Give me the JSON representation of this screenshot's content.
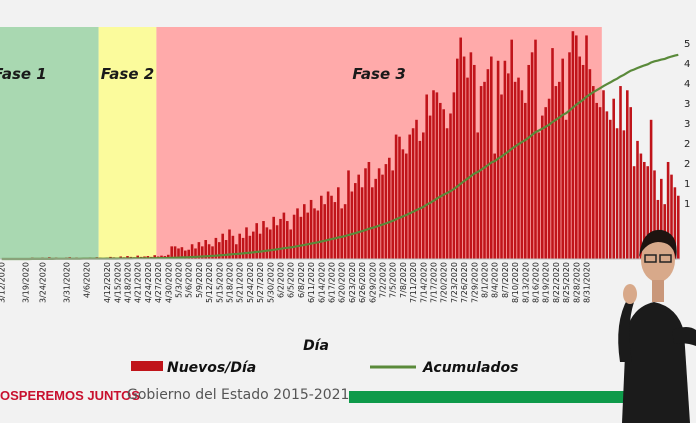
{
  "colors": {
    "phase1": "#a9d8b1",
    "phase2": "#fbfb9c",
    "phase3": "#ffaaaa",
    "bars": "#c0141a",
    "cumulative_line": "#5a8a3a",
    "slogan": "#c8102e",
    "footer_bar": "#0e9a4a"
  },
  "footer": {
    "slogan": "OSPEREMOS JUNTOS",
    "government": "Gobierno del Estado 2015-2021"
  },
  "chart_data": {
    "type": "bar",
    "xlabel": "Día",
    "ylabel": "",
    "phases": [
      {
        "label": "Fase 1",
        "from": "3/12/2020",
        "to": "4/9/2020"
      },
      {
        "label": "Fase 2",
        "from": "4/10/2020",
        "to": "4/26/2020"
      },
      {
        "label": "Fase 3",
        "from": "4/27/2020",
        "to": "9/4/2020"
      }
    ],
    "x_tick_labels": [
      "3/12/2020",
      "3/19/2020",
      "3/24/2020",
      "3/31/2020",
      "4/6/2020",
      "4/12/2020",
      "4/15/2020",
      "4/18/2020",
      "4/21/2020",
      "4/24/2020",
      "4/27/2020",
      "4/30/2020",
      "5/3/2020",
      "5/6/2020",
      "5/9/2020",
      "5/12/2020",
      "5/15/2020",
      "5/18/2020",
      "5/21/2020",
      "5/24/2020",
      "5/27/2020",
      "5/30/2020",
      "6/2/2020",
      "6/5/2020",
      "6/8/2020",
      "6/11/2020",
      "6/14/2020",
      "6/17/2020",
      "6/20/2020",
      "6/23/2020",
      "6/26/2020",
      "6/29/2020",
      "7/2/2020",
      "7/5/2020",
      "7/8/2020",
      "7/11/2020",
      "7/14/2020",
      "7/17/2020",
      "7/20/2020",
      "7/23/2020",
      "7/26/2020",
      "7/29/2020",
      "8/1/2020",
      "8/4/2020",
      "8/7/2020",
      "8/10/2020",
      "8/13/2020",
      "8/16/2020",
      "8/19/2020",
      "8/22/2020",
      "8/25/2020",
      "8/28/2020",
      "8/31/2020"
    ],
    "y_tick_labels": [
      "5",
      "4",
      "4",
      "3",
      "3",
      "2",
      "2",
      "1",
      "1"
    ],
    "series": [
      {
        "name": "Nuevos/Día",
        "type": "bar",
        "start_date": "3/12/2020",
        "values": [
          1,
          0,
          1,
          0,
          2,
          1,
          1,
          2,
          1,
          3,
          2,
          1,
          3,
          2,
          4,
          2,
          3,
          2,
          1,
          3,
          4,
          2,
          3,
          2,
          1,
          2,
          3,
          2,
          4,
          3,
          2,
          3,
          5,
          4,
          3,
          6,
          4,
          7,
          5,
          4,
          8,
          5,
          6,
          7,
          5,
          9,
          6,
          8,
          7,
          10,
          30,
          30,
          25,
          28,
          20,
          22,
          35,
          25,
          40,
          30,
          45,
          35,
          30,
          50,
          40,
          60,
          45,
          70,
          55,
          35,
          60,
          50,
          75,
          55,
          65,
          85,
          60,
          90,
          75,
          70,
          100,
          80,
          95,
          110,
          90,
          70,
          105,
          120,
          100,
          130,
          110,
          140,
          120,
          115,
          150,
          130,
          160,
          150,
          135,
          170,
          120,
          130,
          210,
          160,
          180,
          200,
          170,
          215,
          230,
          170,
          190,
          215,
          200,
          225,
          240,
          210,
          295,
          290,
          260,
          250,
          295,
          310,
          330,
          280,
          300,
          390,
          340,
          400,
          395,
          370,
          355,
          310,
          345,
          395,
          475,
          525,
          480,
          430,
          490,
          460,
          300,
          410,
          420,
          450,
          480,
          250,
          470,
          390,
          470,
          440,
          520,
          420,
          430,
          400,
          370,
          460,
          490,
          520,
          300,
          340,
          360,
          380,
          500,
          410,
          420,
          475,
          330,
          490,
          540,
          530,
          480,
          460,
          530,
          450,
          410,
          370,
          360,
          400,
          350,
          330,
          380,
          310,
          410,
          305,
          400,
          360,
          220,
          280,
          250,
          230,
          220,
          330,
          210,
          140,
          190,
          130,
          230,
          200,
          170,
          150
        ]
      },
      {
        "name": "Acumulados",
        "type": "line",
        "start_date": "3/12/2020",
        "values": [
          1,
          1,
          2,
          2,
          4,
          5,
          6,
          8,
          9,
          12,
          14,
          15,
          18,
          20,
          24,
          26,
          29,
          31,
          32,
          35,
          39,
          41,
          44,
          46,
          47,
          49,
          52,
          54,
          58,
          61,
          63,
          66,
          71,
          75,
          78,
          84,
          88,
          95,
          100,
          104,
          112,
          117,
          123,
          130,
          135,
          144,
          150,
          158,
          165,
          175,
          205,
          235,
          260,
          288,
          308,
          330,
          365,
          390,
          430,
          460,
          505,
          540,
          570,
          620,
          660,
          720,
          765,
          835,
          890,
          925,
          985,
          1035,
          1110,
          1165,
          1230,
          1315,
          1375,
          1465,
          1540,
          1610,
          1710,
          1790,
          1885,
          1995,
          2085,
          2155,
          2260,
          2380,
          2480,
          2610,
          2720,
          2860,
          2980,
          3095,
          3245,
          3375,
          3535,
          3685,
          3820,
          3990,
          4110,
          4240,
          4450,
          4610,
          4790,
          4990,
          5160,
          5375,
          5605,
          5775,
          5965,
          6180,
          6380,
          6605,
          6845,
          7055,
          7350,
          7640,
          7900,
          8150,
          8445,
          8755,
          9085,
          9365,
          9665,
          10055,
          10395,
          10795,
          11190,
          11560,
          11915,
          12225,
          12570,
          12965,
          13440,
          13965,
          14445,
          14875,
          15365,
          15825,
          16125,
          16535,
          16955,
          17405,
          17885,
          18135,
          18605,
          18995,
          19465,
          19905,
          20425,
          20845,
          21275,
          21675,
          22045,
          22505,
          22995,
          23515,
          23815,
          24155,
          24515,
          24895,
          25395,
          25805,
          26225,
          26700,
          27030,
          27520,
          28060,
          28590,
          29070,
          29530,
          30060,
          30510,
          30920,
          31290,
          31650,
          32050,
          32400,
          32730,
          33110,
          33420,
          33830,
          34135,
          34535,
          34895,
          35115,
          35395,
          35645,
          35875,
          36095,
          36425,
          36635,
          36775,
          36965,
          37095,
          37325,
          37525,
          37695,
          37845
        ]
      }
    ],
    "legend": {
      "position": "bottom-center"
    }
  }
}
